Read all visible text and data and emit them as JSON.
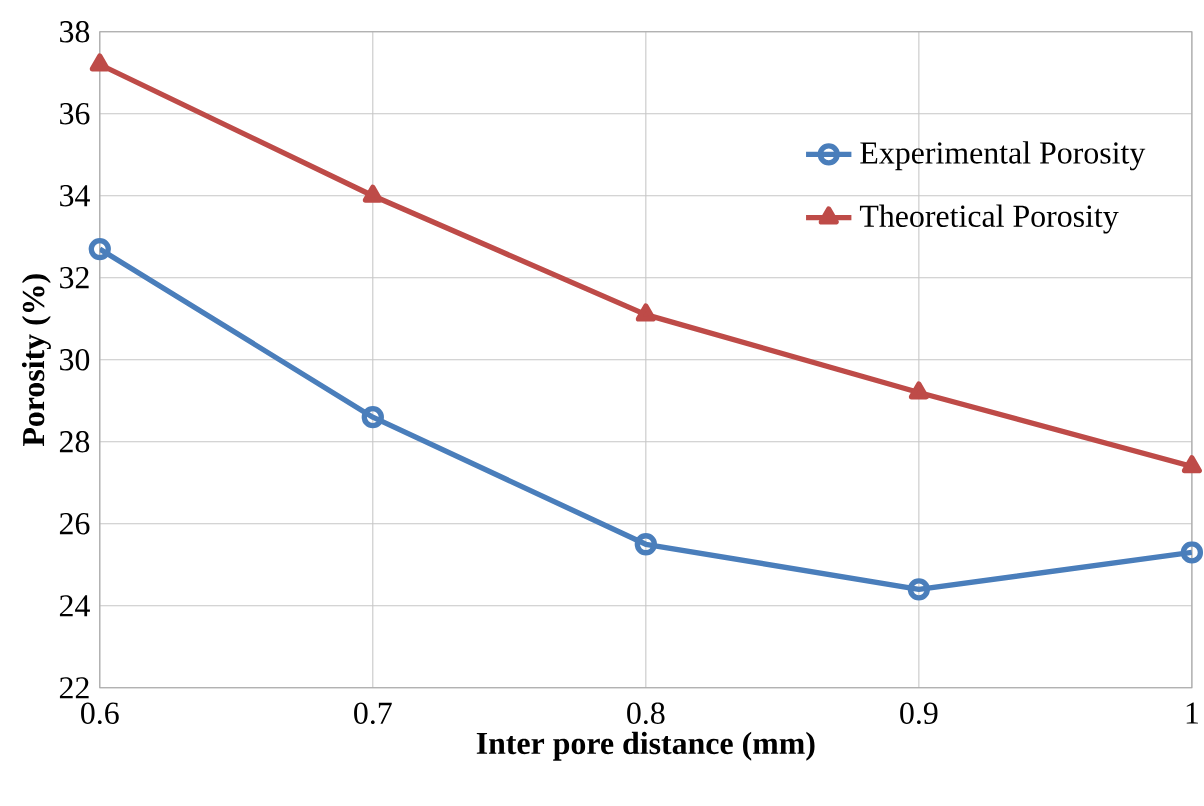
{
  "chart_data": {
    "type": "line",
    "xlabel": "Inter pore distance (mm)",
    "ylabel": "Porosity (%)",
    "x": [
      0.6,
      0.7,
      0.8,
      0.9,
      1
    ],
    "series": [
      {
        "name": "Experimental Porosity",
        "color": "#4a7ebb",
        "marker": "circle",
        "values": [
          32.7,
          28.6,
          25.5,
          24.4,
          25.3
        ]
      },
      {
        "name": "Theoretical Porosity",
        "color": "#be4b48",
        "marker": "triangle",
        "values": [
          37.2,
          34.0,
          31.1,
          29.2,
          27.4
        ]
      }
    ],
    "xlim": [
      0.6,
      1
    ],
    "xticks": [
      0.6,
      0.7,
      0.8,
      0.9,
      1
    ],
    "ylim": [
      22,
      38
    ],
    "yticks": [
      22,
      24,
      26,
      28,
      30,
      32,
      34,
      36,
      38
    ],
    "grid": true,
    "legend": "top right",
    "line_style": "solid"
  }
}
